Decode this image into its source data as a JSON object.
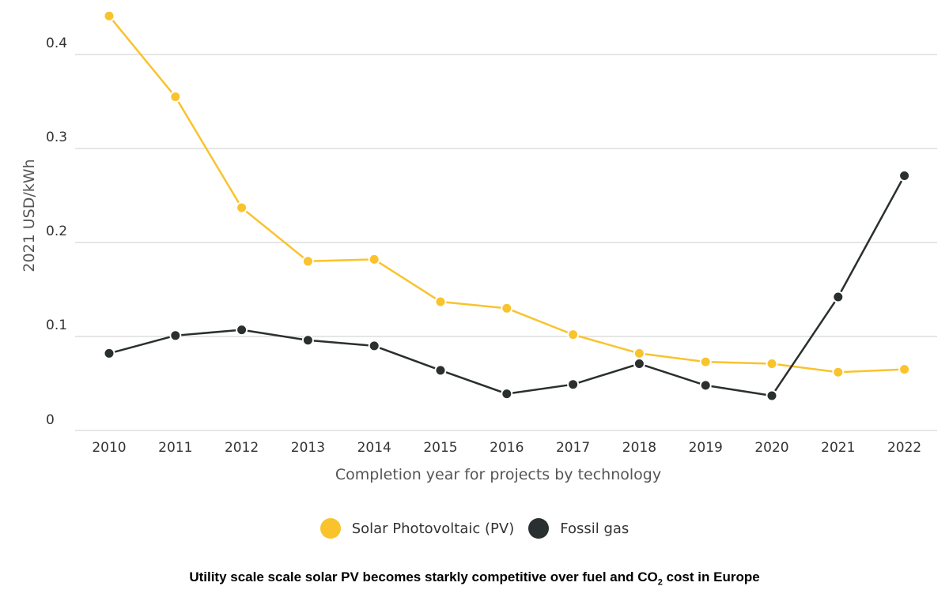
{
  "colors": {
    "solar": "#F9C32C",
    "gas": "#2A2F2F",
    "grid": "#dddddd"
  },
  "legend": {
    "solar_label": "Solar Photovoltaic (PV)",
    "gas_label": "Fossil gas"
  },
  "caption": {
    "before": "Utility scale scale solar PV becomes starkly competitive over fuel and CO",
    "sub": "2",
    "after": " cost in Europe"
  },
  "chart_data": {
    "type": "line",
    "title": "",
    "xlabel": "Completion year for projects by technology",
    "ylabel": "2021 USD/kWh",
    "ylim": [
      0,
      0.44
    ],
    "yticks": [
      "0",
      "0.1",
      "0.2",
      "0.3",
      "0.4"
    ],
    "grid": true,
    "legend_position": "bottom",
    "x": [
      "2010",
      "2011",
      "2012",
      "2013",
      "2014",
      "2015",
      "2016",
      "2017",
      "2018",
      "2019",
      "2020",
      "2021",
      "2022"
    ],
    "series": [
      {
        "name": "Solar Photovoltaic (PV)",
        "color": "#F9C32C",
        "values": [
          0.441,
          0.355,
          0.237,
          0.18,
          0.182,
          0.137,
          0.13,
          0.102,
          0.082,
          0.073,
          0.071,
          0.062,
          0.065
        ]
      },
      {
        "name": "Fossil gas",
        "color": "#2A2F2F",
        "values": [
          0.082,
          0.101,
          0.107,
          0.096,
          0.09,
          0.064,
          0.039,
          0.049,
          0.071,
          0.048,
          0.037,
          0.142,
          0.271
        ]
      }
    ]
  }
}
